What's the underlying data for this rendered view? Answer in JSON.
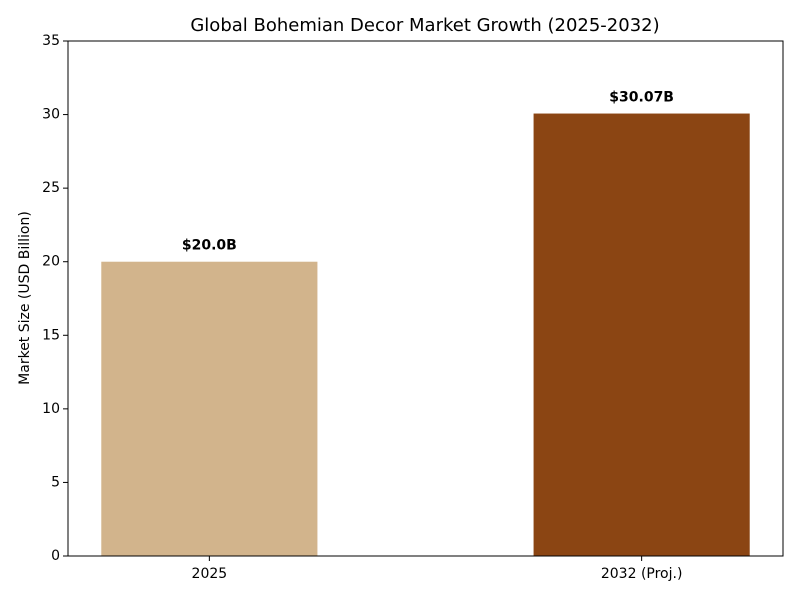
{
  "chart_data": {
    "type": "bar",
    "title": "Global Bohemian Decor Market Growth (2025-2032)",
    "y_label": "Market Size (USD Billion)",
    "categories": [
      "2025",
      "2032 (Proj.)"
    ],
    "values": [
      20.0,
      30.07
    ],
    "value_labels": [
      "$20.0B",
      "$30.07B"
    ],
    "colors": [
      "#d2b48c",
      "#8b4513"
    ],
    "ylim": [
      0,
      35
    ],
    "yticks": [
      0,
      5,
      10,
      15,
      20,
      25,
      30,
      35
    ],
    "grid": false
  }
}
